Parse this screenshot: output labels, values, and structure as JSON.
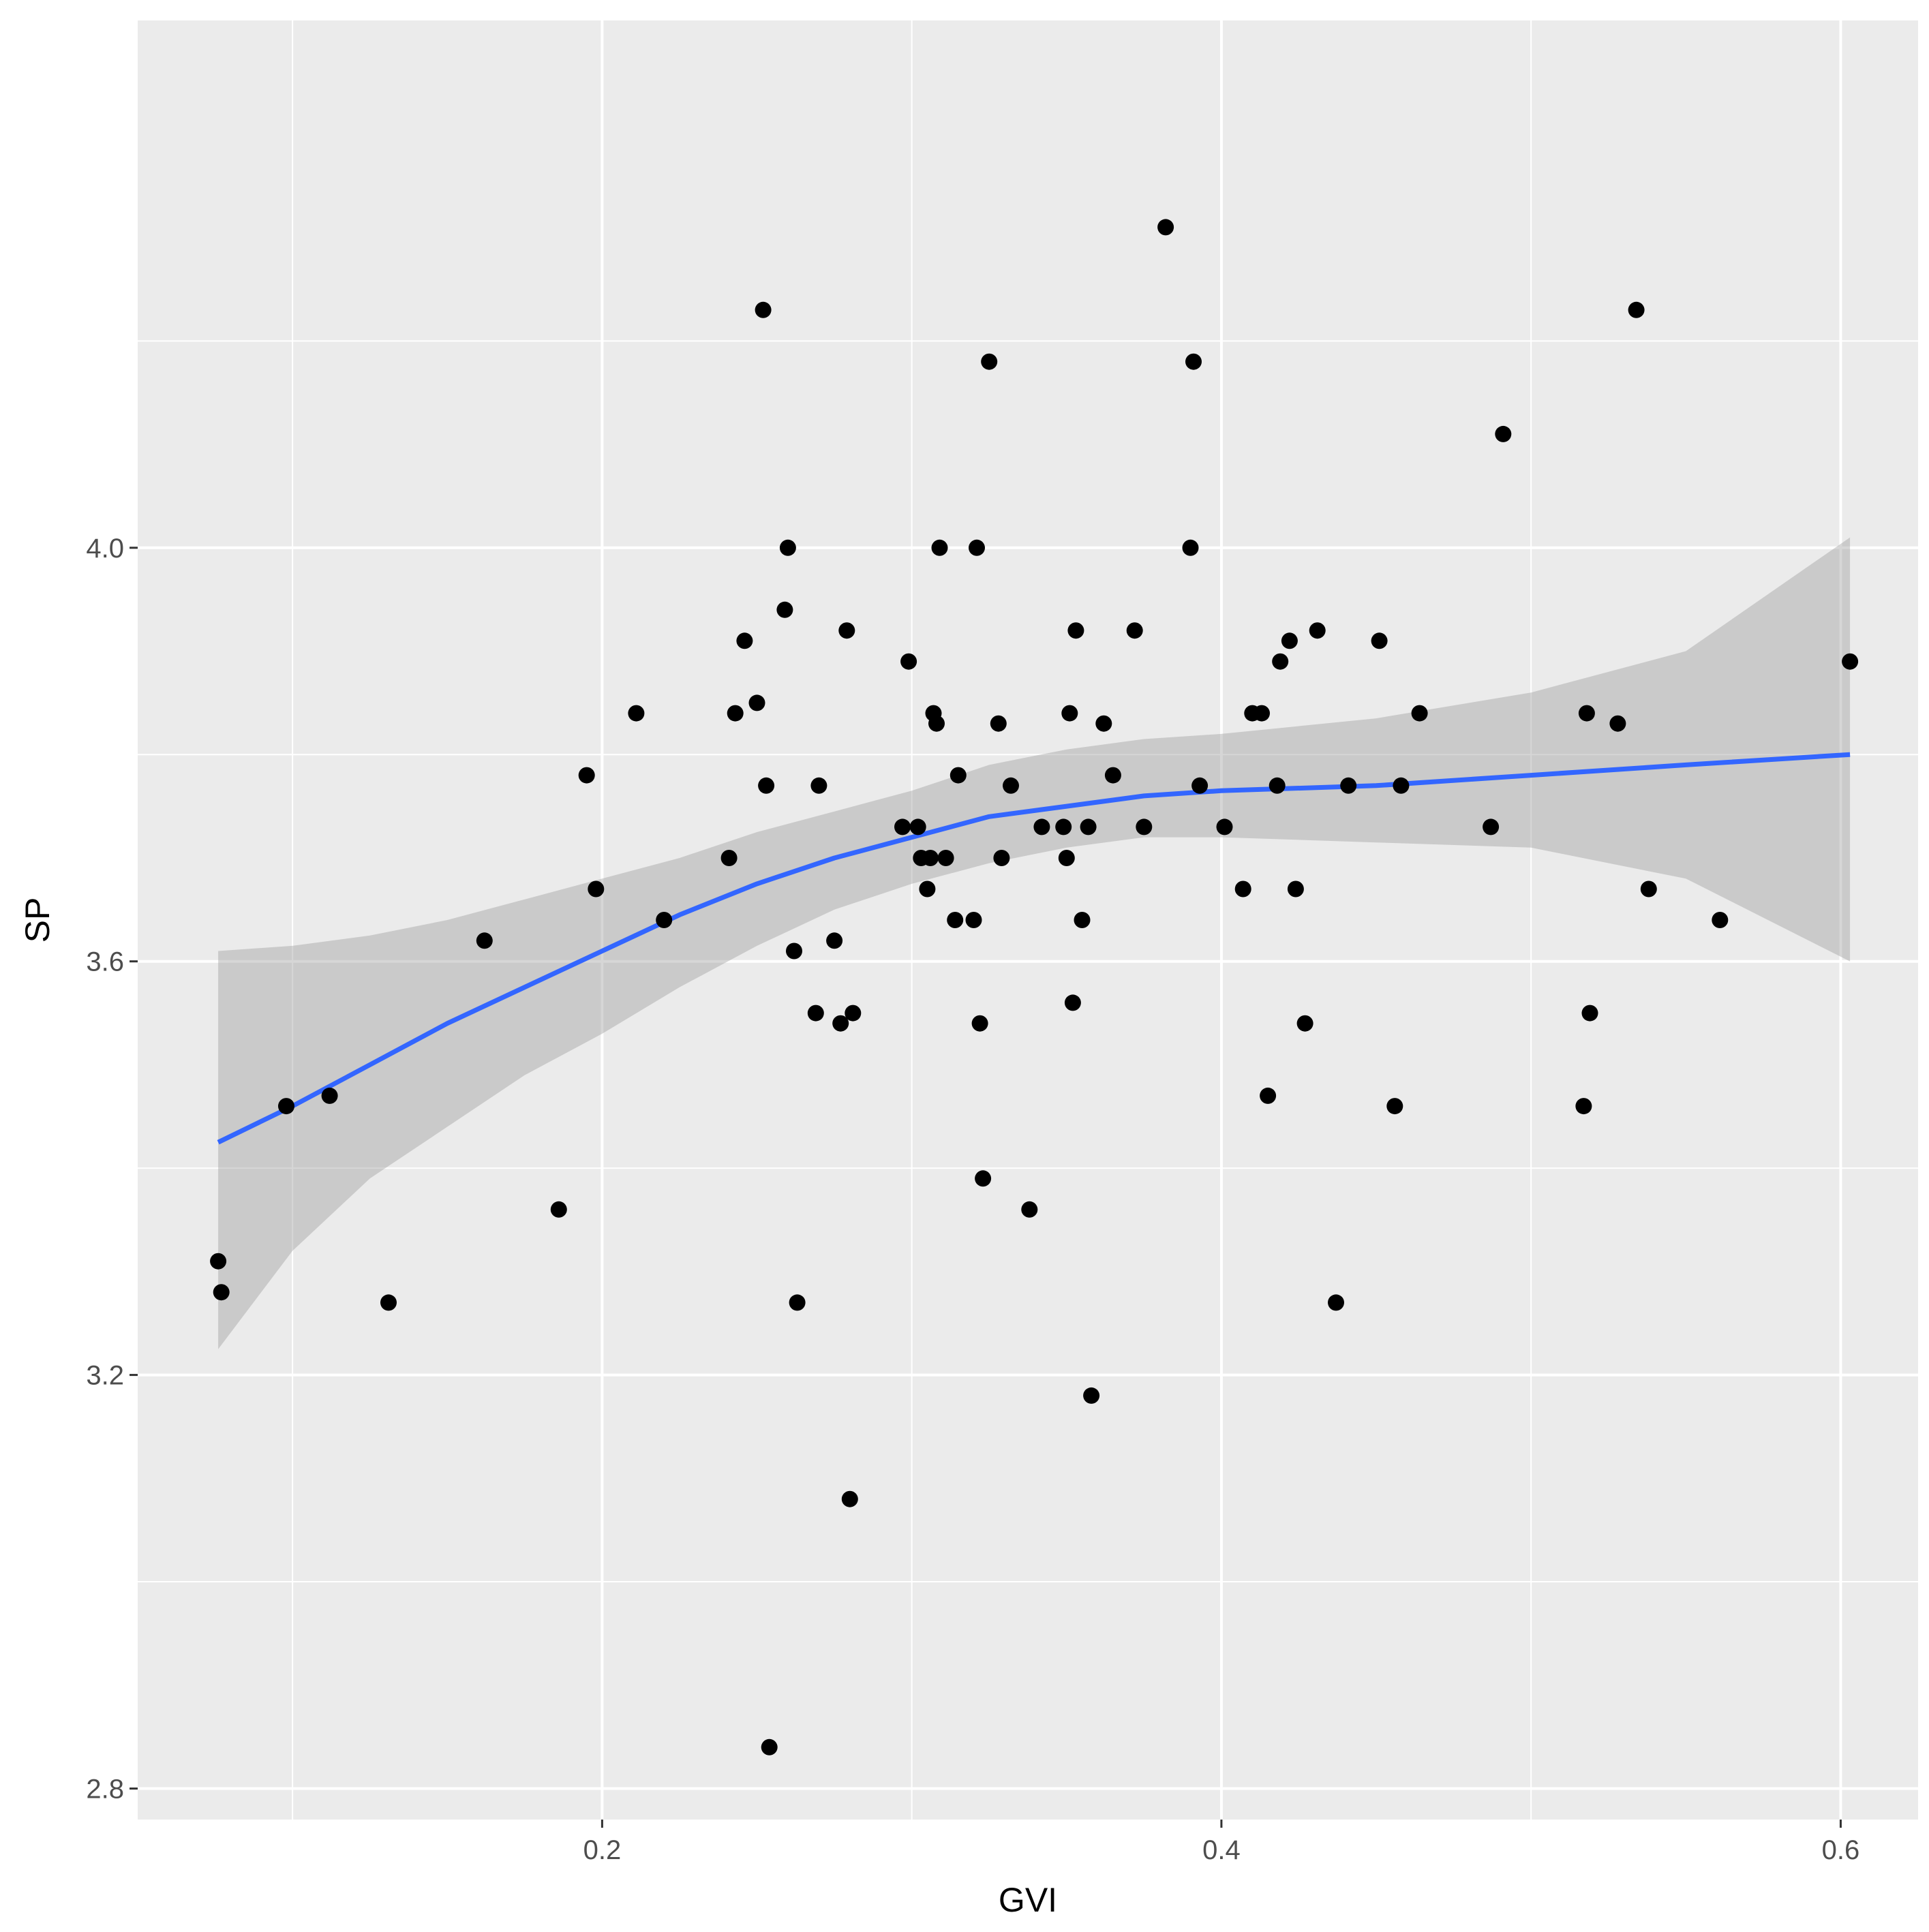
{
  "chart_data": {
    "type": "scatter",
    "title": "",
    "xlabel": "GVI",
    "ylabel": "SP",
    "xlim": [
      0.05,
      0.625
    ],
    "ylim": [
      2.77,
      4.51
    ],
    "x_ticks": [
      {
        "value": 0.2,
        "label": "0.2"
      },
      {
        "value": 0.4,
        "label": "0.4"
      },
      {
        "value": 0.6,
        "label": "0.6"
      }
    ],
    "y_ticks": [
      {
        "value": 2.8,
        "label": "2.8"
      },
      {
        "value": 3.2,
        "label": "3.2"
      },
      {
        "value": 3.6,
        "label": "3.6"
      },
      {
        "value": 4.0,
        "label": "4.0"
      }
    ],
    "grid": true,
    "colors": {
      "panel_background": "#ebebeb",
      "grid": "#ffffff",
      "points": "#000000",
      "smooth_line": "#3366ff",
      "confidence_band": "#999999"
    },
    "points": [
      [
        0.076,
        3.31
      ],
      [
        0.077,
        3.28
      ],
      [
        0.098,
        3.46
      ],
      [
        0.112,
        3.47
      ],
      [
        0.131,
        3.27
      ],
      [
        0.162,
        3.62
      ],
      [
        0.186,
        3.36
      ],
      [
        0.195,
        3.78
      ],
      [
        0.198,
        3.67
      ],
      [
        0.211,
        3.84
      ],
      [
        0.22,
        3.64
      ],
      [
        0.241,
        3.7
      ],
      [
        0.243,
        3.84
      ],
      [
        0.246,
        3.91
      ],
      [
        0.25,
        3.85
      ],
      [
        0.252,
        4.23
      ],
      [
        0.253,
        3.77
      ],
      [
        0.254,
        2.84
      ],
      [
        0.259,
        3.94
      ],
      [
        0.26,
        4.0
      ],
      [
        0.262,
        3.61
      ],
      [
        0.263,
        3.27
      ],
      [
        0.269,
        3.55
      ],
      [
        0.27,
        3.77
      ],
      [
        0.275,
        3.62
      ],
      [
        0.277,
        3.54
      ],
      [
        0.279,
        3.92
      ],
      [
        0.28,
        3.08
      ],
      [
        0.281,
        3.55
      ],
      [
        0.297,
        3.73
      ],
      [
        0.299,
        3.89
      ],
      [
        0.302,
        3.73
      ],
      [
        0.303,
        3.7
      ],
      [
        0.305,
        3.67
      ],
      [
        0.306,
        3.7
      ],
      [
        0.307,
        3.84
      ],
      [
        0.308,
        3.83
      ],
      [
        0.309,
        4.0
      ],
      [
        0.311,
        3.7
      ],
      [
        0.314,
        3.64
      ],
      [
        0.315,
        3.78
      ],
      [
        0.32,
        3.64
      ],
      [
        0.321,
        4.0
      ],
      [
        0.322,
        3.54
      ],
      [
        0.323,
        3.39
      ],
      [
        0.325,
        4.18
      ],
      [
        0.328,
        3.83
      ],
      [
        0.329,
        3.7
      ],
      [
        0.332,
        3.77
      ],
      [
        0.338,
        3.36
      ],
      [
        0.342,
        3.73
      ],
      [
        0.349,
        3.73
      ],
      [
        0.35,
        3.7
      ],
      [
        0.351,
        3.84
      ],
      [
        0.352,
        3.56
      ],
      [
        0.353,
        3.92
      ],
      [
        0.355,
        3.64
      ],
      [
        0.357,
        3.73
      ],
      [
        0.358,
        3.18
      ],
      [
        0.362,
        3.83
      ],
      [
        0.365,
        3.78
      ],
      [
        0.372,
        3.92
      ],
      [
        0.375,
        3.73
      ],
      [
        0.382,
        4.31
      ],
      [
        0.39,
        4.0
      ],
      [
        0.391,
        4.18
      ],
      [
        0.393,
        3.77
      ],
      [
        0.401,
        3.73
      ],
      [
        0.407,
        3.67
      ],
      [
        0.41,
        3.84
      ],
      [
        0.413,
        3.84
      ],
      [
        0.415,
        3.47
      ],
      [
        0.418,
        3.77
      ],
      [
        0.419,
        3.89
      ],
      [
        0.422,
        3.91
      ],
      [
        0.424,
        3.67
      ],
      [
        0.427,
        3.54
      ],
      [
        0.431,
        3.92
      ],
      [
        0.437,
        3.27
      ],
      [
        0.441,
        3.77
      ],
      [
        0.456,
        3.46
      ],
      [
        0.458,
        3.77
      ],
      [
        0.451,
        3.91
      ],
      [
        0.464,
        3.84
      ],
      [
        0.487,
        3.73
      ],
      [
        0.491,
        4.11
      ],
      [
        0.517,
        3.46
      ],
      [
        0.518,
        3.84
      ],
      [
        0.519,
        3.55
      ],
      [
        0.528,
        3.83
      ],
      [
        0.534,
        4.23
      ],
      [
        0.538,
        3.67
      ],
      [
        0.561,
        3.64
      ],
      [
        0.603,
        3.89
      ]
    ],
    "smooth_fit": {
      "x": [
        0.076,
        0.1,
        0.125,
        0.15,
        0.175,
        0.2,
        0.225,
        0.25,
        0.275,
        0.3,
        0.325,
        0.35,
        0.375,
        0.4,
        0.45,
        0.5,
        0.55,
        0.603
      ],
      "y": [
        3.425,
        3.46,
        3.5,
        3.54,
        3.575,
        3.61,
        3.645,
        3.675,
        3.7,
        3.72,
        3.74,
        3.75,
        3.76,
        3.765,
        3.77,
        3.78,
        3.79,
        3.8
      ],
      "lower": [
        3.225,
        3.32,
        3.39,
        3.44,
        3.49,
        3.53,
        3.575,
        3.615,
        3.65,
        3.675,
        3.695,
        3.71,
        3.72,
        3.72,
        3.715,
        3.71,
        3.68,
        3.6
      ],
      "upper": [
        3.61,
        3.615,
        3.625,
        3.64,
        3.66,
        3.68,
        3.7,
        3.725,
        3.745,
        3.765,
        3.79,
        3.805,
        3.815,
        3.82,
        3.835,
        3.86,
        3.9,
        4.01
      ]
    }
  }
}
